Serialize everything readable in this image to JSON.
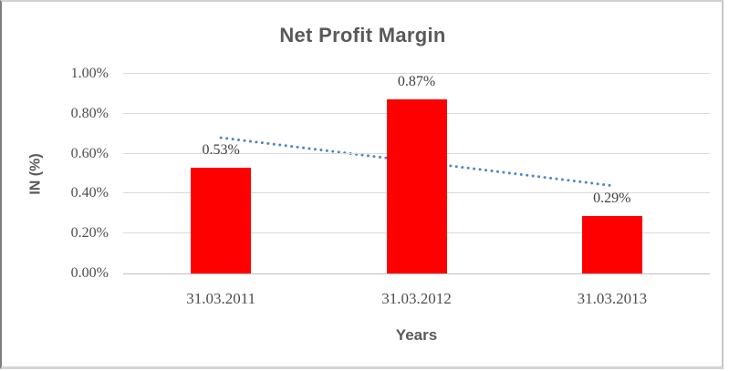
{
  "chart_data": {
    "type": "bar",
    "title": "Net Profit Margin",
    "xlabel": "Years",
    "ylabel": "IN (%)",
    "categories": [
      "31.03.2011",
      "31.03.2012",
      "31.03.2013"
    ],
    "values": [
      0.53,
      0.87,
      0.29
    ],
    "data_labels": [
      "0.53%",
      "0.87%",
      "0.29%"
    ],
    "ylim": [
      0,
      1.0
    ],
    "y_tick_labels": [
      "0.00%",
      "0.20%",
      "0.40%",
      "0.60%",
      "0.80%",
      "1.00%"
    ],
    "grid": true,
    "legend": false,
    "bar_color": "#fe0000",
    "trendline": {
      "type": "linear",
      "style": "dotted",
      "color": "#4f86c6",
      "start_value": 0.68,
      "end_value": 0.44
    }
  },
  "colors": {
    "gridline": "#d9d9d9",
    "axis_line": "#bfbfbf",
    "title_text": "#595959",
    "tick_text": "#4d4d4d",
    "data_label_text": "#404040",
    "frame_border": "#c6c6c6"
  }
}
